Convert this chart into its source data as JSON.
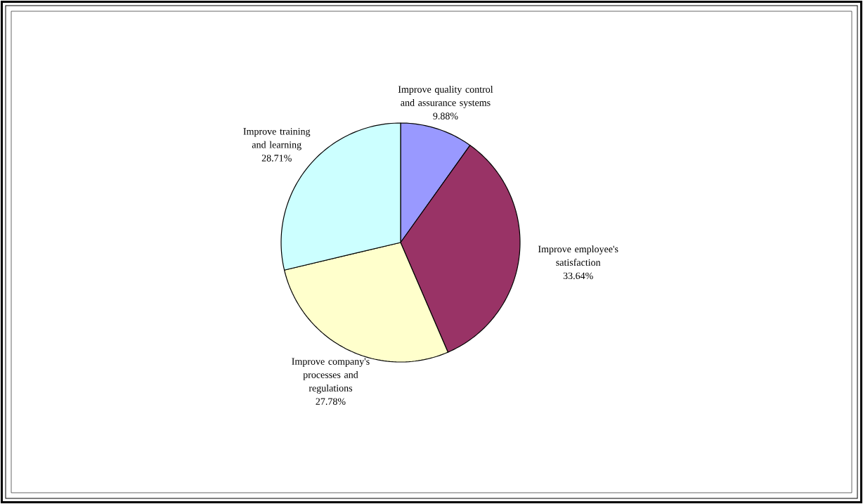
{
  "chart_data": {
    "type": "pie",
    "categories": [
      "Improve quality control and assurance systems",
      "Improve employee's satisfaction",
      "Improve company's processes and regulations",
      "Improve training and learning"
    ],
    "values": [
      9.88,
      33.64,
      27.78,
      28.71
    ],
    "value_labels": [
      "9.88%",
      "33.64%",
      "27.78%",
      "28.71%"
    ],
    "colors": [
      "#9999ff",
      "#993366",
      "#ffffcc",
      "#ccffff"
    ]
  }
}
